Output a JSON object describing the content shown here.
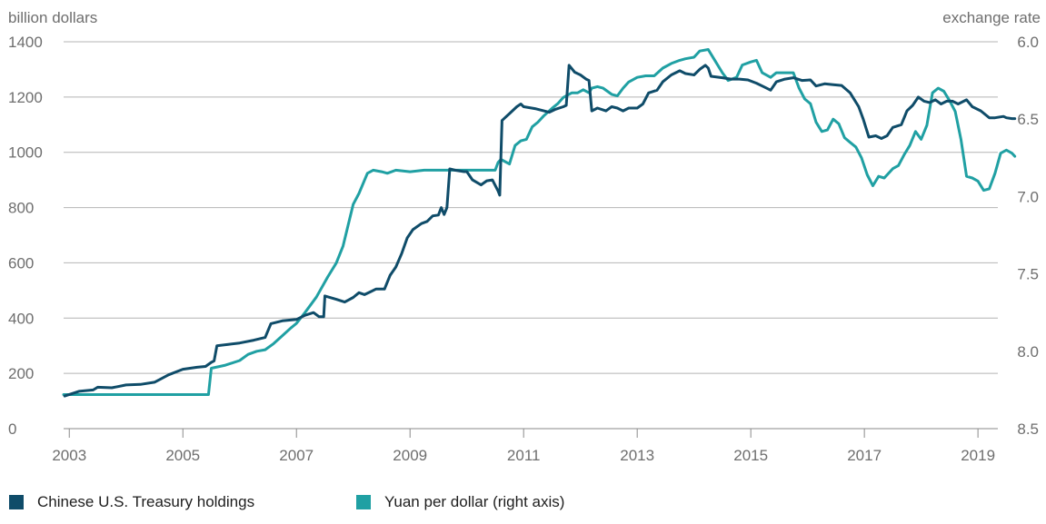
{
  "chart_data": {
    "type": "line",
    "y_left_label": "billion dollars",
    "y_right_label": "exchange rate",
    "y_left_range": [
      0,
      1400
    ],
    "y_left_ticks": [
      "0",
      "200",
      "400",
      "600",
      "800",
      "1000",
      "1200",
      "1400"
    ],
    "y_right_range": [
      6.0,
      8.5
    ],
    "y_right_ticks": [
      "6.0",
      "6.5",
      "7.0",
      "7.5",
      "8.0",
      "8.5"
    ],
    "x_range": [
      2002.9,
      2019.35
    ],
    "x_ticks": [
      "2003",
      "2005",
      "2007",
      "2009",
      "2011",
      "2013",
      "2015",
      "2017",
      "2019"
    ],
    "grid": "horizontal",
    "colors": {
      "holdings": "#0f4c69",
      "yuan": "#20a0a3",
      "grid": "#b4b4b4",
      "text": "#6e6e6e"
    },
    "series": [
      {
        "name": "Chinese U.S. Treasury holdings",
        "axis": "left",
        "color": "#0f4c69",
        "points": [
          [
            2002.92,
            118
          ],
          [
            2003.17,
            135
          ],
          [
            2003.42,
            140
          ],
          [
            2003.5,
            150
          ],
          [
            2003.75,
            148
          ],
          [
            2004.0,
            158
          ],
          [
            2004.25,
            160
          ],
          [
            2004.5,
            168
          ],
          [
            2004.75,
            195
          ],
          [
            2005.0,
            215
          ],
          [
            2005.25,
            222
          ],
          [
            2005.4,
            225
          ],
          [
            2005.5,
            240
          ],
          [
            2005.55,
            245
          ],
          [
            2005.6,
            300
          ],
          [
            2005.8,
            305
          ],
          [
            2006.0,
            310
          ],
          [
            2006.25,
            320
          ],
          [
            2006.45,
            330
          ],
          [
            2006.55,
            380
          ],
          [
            2006.75,
            390
          ],
          [
            2007.0,
            395
          ],
          [
            2007.15,
            410
          ],
          [
            2007.3,
            420
          ],
          [
            2007.4,
            405
          ],
          [
            2007.48,
            405
          ],
          [
            2007.5,
            480
          ],
          [
            2007.7,
            468
          ],
          [
            2007.85,
            458
          ],
          [
            2008.0,
            475
          ],
          [
            2008.1,
            492
          ],
          [
            2008.2,
            485
          ],
          [
            2008.3,
            495
          ],
          [
            2008.4,
            505
          ],
          [
            2008.55,
            505
          ],
          [
            2008.65,
            555
          ],
          [
            2008.75,
            585
          ],
          [
            2008.85,
            632
          ],
          [
            2008.95,
            690
          ],
          [
            2009.05,
            720
          ],
          [
            2009.2,
            742
          ],
          [
            2009.3,
            750
          ],
          [
            2009.4,
            770
          ],
          [
            2009.5,
            773
          ],
          [
            2009.55,
            800
          ],
          [
            2009.6,
            775
          ],
          [
            2009.65,
            800
          ],
          [
            2009.7,
            940
          ],
          [
            2009.8,
            935
          ],
          [
            2009.95,
            930
          ],
          [
            2010.0,
            930
          ],
          [
            2010.1,
            900
          ],
          [
            2010.25,
            882
          ],
          [
            2010.35,
            897
          ],
          [
            2010.45,
            900
          ],
          [
            2010.55,
            860
          ],
          [
            2010.58,
            845
          ],
          [
            2010.62,
            1115
          ],
          [
            2010.75,
            1140
          ],
          [
            2010.88,
            1165
          ],
          [
            2010.95,
            1175
          ],
          [
            2011.0,
            1165
          ],
          [
            2011.2,
            1158
          ],
          [
            2011.45,
            1145
          ],
          [
            2011.55,
            1155
          ],
          [
            2011.7,
            1165
          ],
          [
            2011.75,
            1170
          ],
          [
            2011.8,
            1315
          ],
          [
            2011.9,
            1290
          ],
          [
            2012.0,
            1280
          ],
          [
            2012.1,
            1265
          ],
          [
            2012.15,
            1260
          ],
          [
            2012.2,
            1150
          ],
          [
            2012.3,
            1160
          ],
          [
            2012.45,
            1150
          ],
          [
            2012.55,
            1165
          ],
          [
            2012.65,
            1160
          ],
          [
            2012.75,
            1150
          ],
          [
            2012.85,
            1160
          ],
          [
            2013.0,
            1160
          ],
          [
            2013.1,
            1175
          ],
          [
            2013.2,
            1215
          ],
          [
            2013.35,
            1225
          ],
          [
            2013.45,
            1255
          ],
          [
            2013.6,
            1280
          ],
          [
            2013.75,
            1295
          ],
          [
            2013.85,
            1285
          ],
          [
            2014.0,
            1280
          ],
          [
            2014.1,
            1300
          ],
          [
            2014.2,
            1315
          ],
          [
            2014.25,
            1305
          ],
          [
            2014.3,
            1275
          ],
          [
            2014.5,
            1270
          ],
          [
            2014.65,
            1265
          ],
          [
            2014.8,
            1265
          ],
          [
            2014.95,
            1262
          ],
          [
            2015.1,
            1250
          ],
          [
            2015.25,
            1235
          ],
          [
            2015.35,
            1225
          ],
          [
            2015.45,
            1255
          ],
          [
            2015.6,
            1265
          ],
          [
            2015.75,
            1270
          ],
          [
            2015.9,
            1260
          ],
          [
            2016.05,
            1262
          ],
          [
            2016.15,
            1240
          ],
          [
            2016.3,
            1248
          ],
          [
            2016.45,
            1245
          ],
          [
            2016.6,
            1242
          ],
          [
            2016.75,
            1215
          ],
          [
            2016.9,
            1165
          ],
          [
            2016.98,
            1120
          ],
          [
            2017.08,
            1055
          ],
          [
            2017.2,
            1060
          ],
          [
            2017.3,
            1050
          ],
          [
            2017.4,
            1060
          ],
          [
            2017.5,
            1090
          ],
          [
            2017.65,
            1100
          ],
          [
            2017.75,
            1150
          ],
          [
            2017.85,
            1170
          ],
          [
            2017.95,
            1200
          ],
          [
            2018.05,
            1185
          ],
          [
            2018.15,
            1180
          ],
          [
            2018.25,
            1190
          ],
          [
            2018.35,
            1175
          ],
          [
            2018.45,
            1185
          ],
          [
            2018.55,
            1185
          ],
          [
            2018.65,
            1175
          ],
          [
            2018.8,
            1190
          ],
          [
            2018.9,
            1165
          ],
          [
            2019.05,
            1150
          ],
          [
            2019.2,
            1125
          ],
          [
            2019.3,
            1125
          ],
          [
            2019.45,
            1130
          ],
          [
            2019.5,
            1125
          ],
          [
            2019.6,
            1122
          ],
          [
            2019.65,
            1122
          ]
        ]
      },
      {
        "name": "Yuan per dollar (right axis)",
        "axis": "right",
        "color": "#20a0a3",
        "points": [
          [
            2002.9,
            8.28
          ],
          [
            2003.5,
            8.28
          ],
          [
            2004.0,
            8.28
          ],
          [
            2004.5,
            8.28
          ],
          [
            2005.0,
            8.28
          ],
          [
            2005.45,
            8.28
          ],
          [
            2005.5,
            8.11
          ],
          [
            2005.75,
            8.09
          ],
          [
            2006.0,
            8.06
          ],
          [
            2006.15,
            8.02
          ],
          [
            2006.3,
            8.0
          ],
          [
            2006.45,
            7.99
          ],
          [
            2006.6,
            7.95
          ],
          [
            2006.75,
            7.9
          ],
          [
            2006.9,
            7.85
          ],
          [
            2007.0,
            7.82
          ],
          [
            2007.15,
            7.75
          ],
          [
            2007.35,
            7.65
          ],
          [
            2007.55,
            7.52
          ],
          [
            2007.7,
            7.43
          ],
          [
            2007.82,
            7.32
          ],
          [
            2007.92,
            7.17
          ],
          [
            2008.0,
            7.05
          ],
          [
            2008.1,
            6.98
          ],
          [
            2008.25,
            6.85
          ],
          [
            2008.35,
            6.83
          ],
          [
            2008.5,
            6.84
          ],
          [
            2008.6,
            6.85
          ],
          [
            2008.75,
            6.83
          ],
          [
            2009.0,
            6.84
          ],
          [
            2009.25,
            6.83
          ],
          [
            2009.5,
            6.83
          ],
          [
            2009.75,
            6.83
          ],
          [
            2010.0,
            6.83
          ],
          [
            2010.25,
            6.83
          ],
          [
            2010.5,
            6.83
          ],
          [
            2010.55,
            6.78
          ],
          [
            2010.6,
            6.76
          ],
          [
            2010.75,
            6.79
          ],
          [
            2010.85,
            6.67
          ],
          [
            2010.95,
            6.64
          ],
          [
            2011.05,
            6.63
          ],
          [
            2011.15,
            6.55
          ],
          [
            2011.25,
            6.52
          ],
          [
            2011.35,
            6.48
          ],
          [
            2011.5,
            6.43
          ],
          [
            2011.6,
            6.4
          ],
          [
            2011.7,
            6.36
          ],
          [
            2011.85,
            6.33
          ],
          [
            2011.95,
            6.33
          ],
          [
            2012.05,
            6.31
          ],
          [
            2012.15,
            6.33
          ],
          [
            2012.2,
            6.3
          ],
          [
            2012.3,
            6.29
          ],
          [
            2012.4,
            6.3
          ],
          [
            2012.55,
            6.34
          ],
          [
            2012.65,
            6.35
          ],
          [
            2012.75,
            6.3
          ],
          [
            2012.85,
            6.26
          ],
          [
            2013.0,
            6.23
          ],
          [
            2013.15,
            6.22
          ],
          [
            2013.3,
            6.22
          ],
          [
            2013.45,
            6.17
          ],
          [
            2013.6,
            6.14
          ],
          [
            2013.75,
            6.12
          ],
          [
            2013.85,
            6.11
          ],
          [
            2014.0,
            6.1
          ],
          [
            2014.1,
            6.06
          ],
          [
            2014.25,
            6.05
          ],
          [
            2014.35,
            6.11
          ],
          [
            2014.5,
            6.2
          ],
          [
            2014.6,
            6.25
          ],
          [
            2014.75,
            6.23
          ],
          [
            2014.85,
            6.15
          ],
          [
            2015.0,
            6.13
          ],
          [
            2015.1,
            6.12
          ],
          [
            2015.2,
            6.2
          ],
          [
            2015.35,
            6.23
          ],
          [
            2015.45,
            6.2
          ],
          [
            2015.6,
            6.2
          ],
          [
            2015.75,
            6.2
          ],
          [
            2015.85,
            6.3
          ],
          [
            2015.95,
            6.37
          ],
          [
            2016.05,
            6.4
          ],
          [
            2016.15,
            6.52
          ],
          [
            2016.25,
            6.58
          ],
          [
            2016.35,
            6.57
          ],
          [
            2016.45,
            6.5
          ],
          [
            2016.55,
            6.53
          ],
          [
            2016.65,
            6.62
          ],
          [
            2016.75,
            6.65
          ],
          [
            2016.85,
            6.68
          ],
          [
            2016.95,
            6.75
          ],
          [
            2017.05,
            6.86
          ],
          [
            2017.15,
            6.93
          ],
          [
            2017.25,
            6.87
          ],
          [
            2017.35,
            6.88
          ],
          [
            2017.5,
            6.82
          ],
          [
            2017.6,
            6.8
          ],
          [
            2017.7,
            6.73
          ],
          [
            2017.8,
            6.67
          ],
          [
            2017.9,
            6.58
          ],
          [
            2018.0,
            6.63
          ],
          [
            2018.1,
            6.54
          ],
          [
            2018.2,
            6.33
          ],
          [
            2018.3,
            6.3
          ],
          [
            2018.4,
            6.32
          ],
          [
            2018.5,
            6.38
          ],
          [
            2018.6,
            6.45
          ],
          [
            2018.7,
            6.63
          ],
          [
            2018.8,
            6.87
          ],
          [
            2018.9,
            6.88
          ],
          [
            2019.0,
            6.9
          ],
          [
            2019.1,
            6.96
          ],
          [
            2019.2,
            6.95
          ],
          [
            2019.3,
            6.85
          ],
          [
            2019.4,
            6.72
          ],
          [
            2019.5,
            6.7
          ],
          [
            2019.6,
            6.72
          ],
          [
            2019.65,
            6.74
          ]
        ]
      }
    ]
  }
}
